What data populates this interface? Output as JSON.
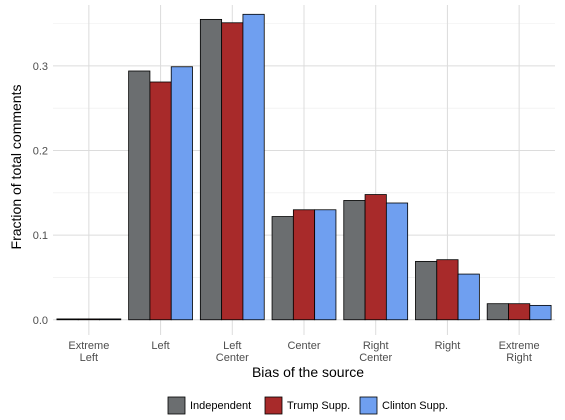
{
  "chart_data": {
    "type": "bar",
    "title": "",
    "xlabel": "Bias of the source",
    "ylabel": "Fraction of total comments",
    "categories": [
      [
        "Extreme",
        "Left"
      ],
      [
        "Left"
      ],
      [
        "Left",
        "Center"
      ],
      [
        "Center"
      ],
      [
        "Right",
        "Center"
      ],
      [
        "Right"
      ],
      [
        "Extreme",
        "Right"
      ]
    ],
    "series": [
      {
        "name": "Independent",
        "color": "#6b6e70",
        "values": [
          0.001,
          0.294,
          0.355,
          0.122,
          0.141,
          0.069,
          0.019
        ]
      },
      {
        "name": "Trump Supp.",
        "color": "#a82a2a",
        "values": [
          0.001,
          0.281,
          0.351,
          0.13,
          0.148,
          0.071,
          0.019
        ]
      },
      {
        "name": "Clinton Supp.",
        "color": "#6f9ff0",
        "values": [
          0.001,
          0.299,
          0.361,
          0.13,
          0.138,
          0.054,
          0.017
        ]
      }
    ],
    "yticks": [
      "0.0",
      "0.1",
      "0.2",
      "0.3"
    ],
    "ylim": [
      -0.018,
      0.372
    ],
    "grid": true,
    "legend_position": "bottom"
  }
}
